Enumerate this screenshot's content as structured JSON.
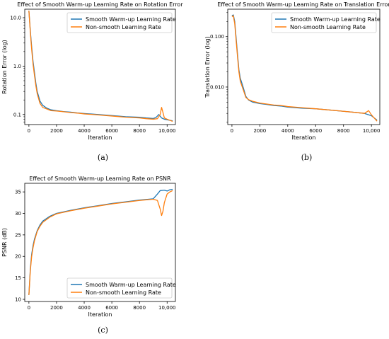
{
  "colors": {
    "smooth": "#1f77b4",
    "nonsmooth": "#ff7f0e"
  },
  "chart_data": [
    {
      "type": "line",
      "title": "Effect of Smooth Warm-up Learning Rate on Rotation Error",
      "xlabel": "Iteration",
      "ylabel": "Rotation Error (log)",
      "yscale": "log",
      "xlim": [
        -300,
        10600
      ],
      "ylim": [
        0.062,
        15
      ],
      "xticks": [
        0,
        2000,
        4000,
        6000,
        8000,
        10000
      ],
      "xtick_labels": [
        "0",
        "2000",
        "4000",
        "6000",
        "8000",
        "10,000"
      ],
      "yticks": [
        0.1,
        1.0,
        10.0
      ],
      "ytick_labels": [
        "0.1",
        "1.0",
        "10.0"
      ],
      "legend_position": "top-right",
      "caption": "(a)",
      "series": [
        {
          "name": "Smooth Warm-up Learning Rate",
          "x": [
            0,
            100,
            200,
            300,
            400,
            500,
            600,
            800,
            1000,
            1300,
            1600,
            2000,
            2500,
            3000,
            3500,
            4000,
            5000,
            6000,
            7000,
            8000,
            8500,
            9000,
            9200,
            9400,
            9600,
            9800,
            10000,
            10400
          ],
          "y": [
            14.0,
            5.5,
            2.5,
            1.25,
            0.75,
            0.45,
            0.3,
            0.19,
            0.155,
            0.135,
            0.125,
            0.12,
            0.115,
            0.112,
            0.108,
            0.105,
            0.1,
            0.095,
            0.09,
            0.088,
            0.085,
            0.083,
            0.087,
            0.1,
            0.085,
            0.08,
            0.078,
            0.074
          ]
        },
        {
          "name": "Non-smooth Learning Rate",
          "x": [
            0,
            100,
            200,
            300,
            400,
            500,
            600,
            800,
            1000,
            1300,
            1600,
            2000,
            2500,
            3000,
            3500,
            4000,
            5000,
            6000,
            7000,
            8000,
            8500,
            9000,
            9300,
            9500,
            9600,
            9700,
            9800,
            10000,
            10200,
            10400
          ],
          "y": [
            14.0,
            5.2,
            2.2,
            1.1,
            0.65,
            0.4,
            0.27,
            0.17,
            0.14,
            0.13,
            0.12,
            0.118,
            0.114,
            0.11,
            0.107,
            0.103,
            0.098,
            0.093,
            0.088,
            0.085,
            0.082,
            0.08,
            0.082,
            0.1,
            0.14,
            0.11,
            0.085,
            0.08,
            0.076,
            0.072
          ]
        }
      ]
    },
    {
      "type": "line",
      "title": "Effect of Smooth Warm-up Learning Rate on Translation Error",
      "xlabel": "Iteration",
      "ylabel": "Translation Error (log)",
      "yscale": "log",
      "xlim": [
        -300,
        10600
      ],
      "ylim": [
        0.0018,
        0.35
      ],
      "xticks": [
        0,
        2000,
        4000,
        6000,
        8000,
        10000
      ],
      "xtick_labels": [
        "0",
        "2000",
        "4000",
        "6000",
        "8000",
        "10,000"
      ],
      "yticks": [
        0.01,
        0.1
      ],
      "ytick_labels": [
        "0.010",
        "0.100"
      ],
      "legend_position": "top-right",
      "caption": "(b)",
      "series": [
        {
          "name": "Smooth Warm-up Learning Rate",
          "x": [
            0,
            100,
            200,
            300,
            400,
            500,
            600,
            800,
            1000,
            1200,
            1500,
            2000,
            2500,
            3000,
            3500,
            4000,
            5000,
            6000,
            7000,
            8000,
            8500,
            9000,
            9500,
            10000,
            10400
          ],
          "y": [
            0.26,
            0.27,
            0.2,
            0.095,
            0.045,
            0.022,
            0.015,
            0.01,
            0.0065,
            0.0055,
            0.005,
            0.0047,
            0.0045,
            0.0043,
            0.0042,
            0.004,
            0.0038,
            0.0037,
            0.0035,
            0.0033,
            0.0032,
            0.0031,
            0.003,
            0.0027,
            0.0022
          ]
        },
        {
          "name": "Non-smooth Learning Rate",
          "x": [
            0,
            100,
            200,
            300,
            400,
            500,
            600,
            800,
            1000,
            1200,
            1500,
            2000,
            2500,
            3000,
            3500,
            4000,
            5000,
            6000,
            7000,
            8000,
            8500,
            9000,
            9500,
            9800,
            10000,
            10400
          ],
          "y": [
            0.25,
            0.26,
            0.18,
            0.085,
            0.04,
            0.02,
            0.013,
            0.009,
            0.0062,
            0.0056,
            0.0052,
            0.0048,
            0.0046,
            0.0044,
            0.0043,
            0.0041,
            0.0039,
            0.0037,
            0.0035,
            0.0033,
            0.0032,
            0.0031,
            0.003,
            0.0034,
            0.0028,
            0.0021
          ]
        }
      ]
    },
    {
      "type": "line",
      "title": "Effect of Smooth Warm-up Learning Rate on PSNR",
      "xlabel": "Iteration",
      "ylabel": "PSNR (dB)",
      "yscale": "linear",
      "xlim": [
        -300,
        10600
      ],
      "ylim": [
        9.5,
        37
      ],
      "xticks": [
        0,
        2000,
        4000,
        6000,
        8000,
        10000
      ],
      "xtick_labels": [
        "0",
        "2000",
        "4000",
        "6000",
        "8000",
        "10,000"
      ],
      "yticks": [
        10,
        15,
        20,
        25,
        30,
        35
      ],
      "ytick_labels": [
        "10",
        "15",
        "20",
        "25",
        "30",
        "35"
      ],
      "legend_position": "lower-right",
      "caption": "(c)",
      "series": [
        {
          "name": "Smooth Warm-up Learning Rate",
          "x": [
            0,
            100,
            200,
            300,
            400,
            600,
            800,
            1000,
            1500,
            2000,
            3000,
            4000,
            5000,
            6000,
            7000,
            8000,
            9000,
            9300,
            9500,
            9800,
            10000,
            10200,
            10400
          ],
          "y": [
            11,
            17,
            20.5,
            22.5,
            24,
            26,
            27.3,
            28.2,
            29.3,
            30.0,
            30.7,
            31.3,
            31.8,
            32.3,
            32.7,
            33.1,
            33.4,
            34.5,
            35.3,
            35.4,
            35.2,
            35.5,
            35.6
          ]
        },
        {
          "name": "Non-smooth Learning Rate",
          "x": [
            0,
            100,
            200,
            300,
            400,
            600,
            800,
            1000,
            1500,
            2000,
            3000,
            4000,
            5000,
            6000,
            7000,
            8000,
            9000,
            9300,
            9500,
            9600,
            9700,
            9800,
            10000,
            10200,
            10400
          ],
          "y": [
            11,
            16.5,
            20,
            22,
            23.6,
            25.8,
            27.0,
            27.9,
            29.1,
            29.9,
            30.6,
            31.2,
            31.7,
            32.2,
            32.6,
            33.0,
            33.3,
            33.0,
            31.0,
            29.5,
            30.5,
            32.5,
            34.5,
            35.0,
            35.3
          ]
        }
      ]
    }
  ]
}
